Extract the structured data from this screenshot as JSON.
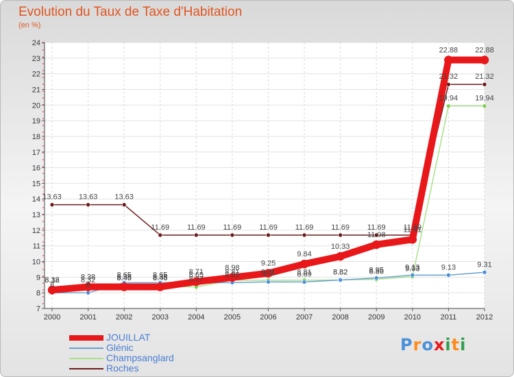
{
  "title": "Evolution du Taux de Taxe d'Habitation",
  "unit_label": "(en %)",
  "brand": {
    "name": "Proxiti",
    "letters": [
      {
        "char": "P",
        "color": "#4a90d9"
      },
      {
        "char": "r",
        "color": "#ff8a1e"
      },
      {
        "char": "o",
        "color": "#4a90d9"
      },
      {
        "char": "x",
        "color": "#e8171a"
      },
      {
        "char": "i",
        "color": "#2f9f4e"
      },
      {
        "char": "t",
        "color": "#ff8a1e"
      },
      {
        "char": "i",
        "color": "#2f9f4e"
      }
    ]
  },
  "chart_data": {
    "type": "line",
    "title": "Evolution du Taux de Taxe d'Habitation",
    "ylabel": "(en %)",
    "xlabel": "",
    "ylim": [
      7,
      24
    ],
    "yticks": [
      "7",
      "8",
      "9",
      "10",
      "11",
      "12",
      "13",
      "14",
      "15",
      "16",
      "17",
      "18",
      "19",
      "20",
      "21",
      "22",
      "23",
      "24"
    ],
    "categories": [
      "2000",
      "2001",
      "2002",
      "2003",
      "2004",
      "2005",
      "2006",
      "2007",
      "2008",
      "2009",
      "2010",
      "2011",
      "2012"
    ],
    "series": [
      {
        "name": "Roches",
        "color": "#6b1c1c",
        "values": [
          13.63,
          13.63,
          13.63,
          11.69,
          11.69,
          11.69,
          11.69,
          11.69,
          11.69,
          11.69,
          11.69,
          21.32,
          21.32
        ],
        "labels": [
          "13.63",
          "13.63",
          "13.63",
          "11.69",
          "11.69",
          "11.69",
          "11.69",
          "11.69",
          "11.69",
          "11.69",
          "11.69",
          "21.32",
          "21.32"
        ]
      },
      {
        "name": "Champsanglard",
        "color": "#a8e08a",
        "values": [
          8.32,
          8.32,
          8.45,
          8.45,
          8.37,
          8.81,
          8.81,
          8.81,
          8.82,
          8.86,
          9.03,
          19.94,
          19.94
        ],
        "labels": [
          "8.32",
          "8.32",
          "8.45",
          "8.45",
          "8.37",
          "8.81",
          "8.81",
          "8.81",
          "8.82",
          "8.86",
          "9.03",
          "19.94",
          "19.94"
        ]
      },
      {
        "name": "Glénic",
        "color": "#6aa0d0",
        "values": [
          8,
          8,
          8.65,
          8.65,
          8.65,
          8.65,
          8.7,
          8.69,
          8.82,
          8.95,
          9.13,
          9.13,
          9.31
        ],
        "labels": [
          "8",
          "8",
          "8.65",
          "8.65",
          "8.65",
          "8.65",
          "8.7",
          "8.69",
          "8.82",
          "8.95",
          "9.13",
          "9.13",
          "9.31"
        ]
      },
      {
        "name": "JOUILLAT",
        "color": "#e8171a",
        "values": [
          8.18,
          8.38,
          8.38,
          8.38,
          8.71,
          8.98,
          9.25,
          9.84,
          10.33,
          11.08,
          11.41,
          22.88,
          22.88
        ],
        "labels": [
          "8.18",
          "8.38",
          "8.38",
          "8.38",
          "8.71",
          "8.98",
          "9.25",
          "9.84",
          "10.33",
          "11.08",
          "11.41",
          "22.88",
          "22.88"
        ]
      }
    ],
    "legend_order": [
      "JOUILLAT",
      "Glénic",
      "Champsanglard",
      "Roches"
    ]
  },
  "legend": [
    {
      "name": "JOUILLAT",
      "color": "#e8171a",
      "text_color": "#4a7fd4",
      "thickness": 8
    },
    {
      "name": "Glénic",
      "color": "#6aa0d0",
      "text_color": "#4a7fd4",
      "thickness": 2
    },
    {
      "name": "Champsanglard",
      "color": "#a8e08a",
      "text_color": "#4a7fd4",
      "thickness": 2
    },
    {
      "name": "Roches",
      "color": "#6b1c1c",
      "text_color": "#4a7fd4",
      "thickness": 2
    }
  ]
}
